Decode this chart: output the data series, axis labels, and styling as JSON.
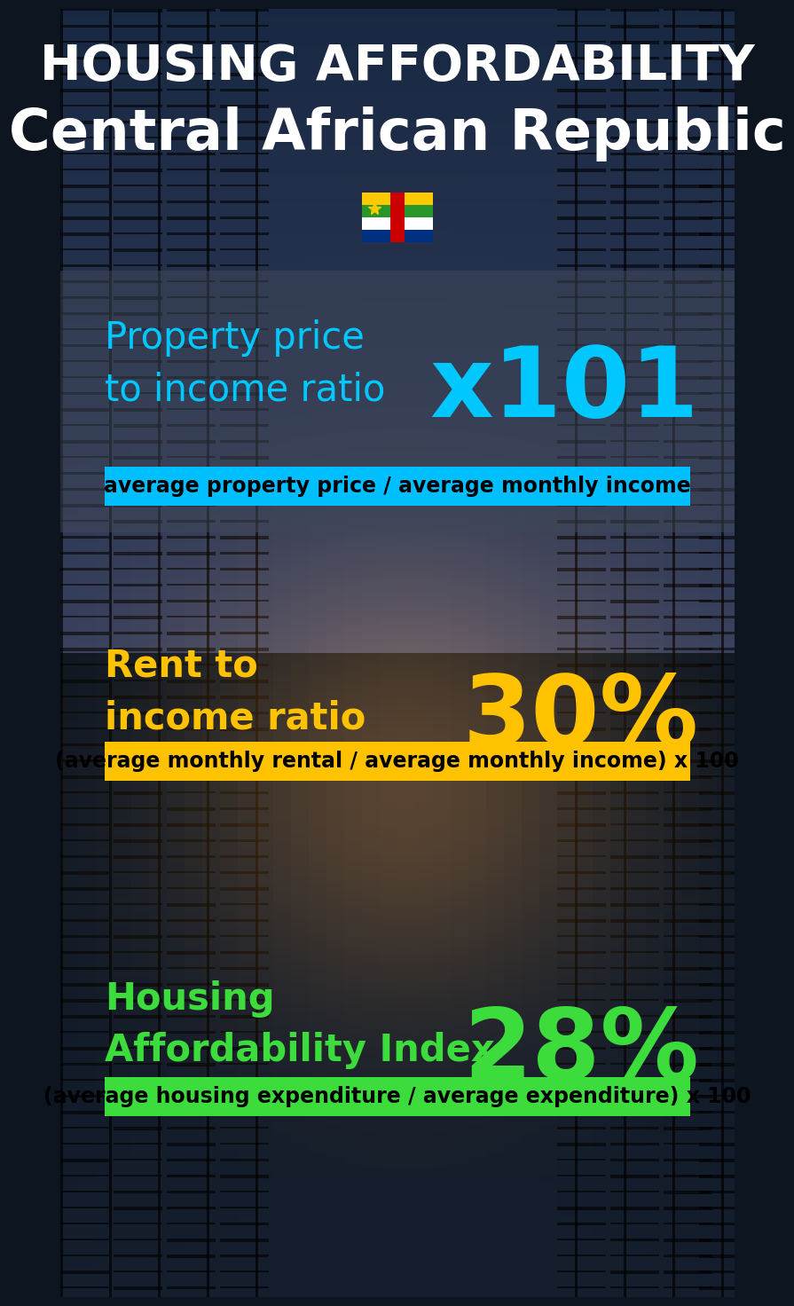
{
  "title_line1": "HOUSING AFFORDABILITY",
  "title_line2": "Central African Republic",
  "bg_color": "#0d1520",
  "section1_label": "Property price\nto income ratio",
  "section1_value": "x101",
  "section1_label_color": "#00c8ff",
  "section1_value_color": "#00c8ff",
  "section1_formula": "average property price / average monthly income",
  "section1_formula_bg": "#00bfff",
  "section2_label": "Rent to\nincome ratio",
  "section2_value": "30%",
  "section2_label_color": "#ffc200",
  "section2_value_color": "#ffc200",
  "section2_formula": "(average monthly rental / average monthly income) x 100",
  "section2_formula_bg": "#ffc200",
  "section3_label": "Housing\nAffordability Index",
  "section3_value": "28%",
  "section3_label_color": "#3ddc3d",
  "section3_value_color": "#3ddc3d",
  "section3_formula": "(average housing expenditure / average expenditure) x 100",
  "section3_formula_bg": "#3ddc3d",
  "title1_fontsize": 40,
  "title2_fontsize": 46,
  "label_fontsize": 30,
  "value_fontsize": 80,
  "formula_fontsize": 17
}
